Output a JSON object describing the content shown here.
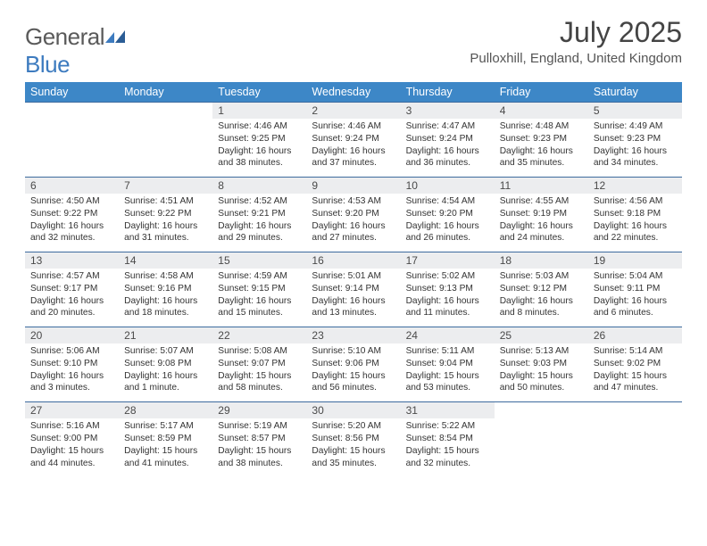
{
  "logo": {
    "text_general": "General",
    "text_blue": "Blue"
  },
  "title": "July 2025",
  "location": "Pulloxhill, England, United Kingdom",
  "colors": {
    "header_bg": "#3d87c7",
    "header_text": "#ffffff",
    "row_border": "#3d6b9e",
    "daynum_bg": "#ecedef",
    "logo_gray": "#5a5a5a",
    "logo_blue": "#3d7bbf"
  },
  "day_headers": [
    "Sunday",
    "Monday",
    "Tuesday",
    "Wednesday",
    "Thursday",
    "Friday",
    "Saturday"
  ],
  "weeks": [
    [
      null,
      null,
      {
        "n": "1",
        "sunrise": "4:46 AM",
        "sunset": "9:25 PM",
        "daylight": "16 hours and 38 minutes."
      },
      {
        "n": "2",
        "sunrise": "4:46 AM",
        "sunset": "9:24 PM",
        "daylight": "16 hours and 37 minutes."
      },
      {
        "n": "3",
        "sunrise": "4:47 AM",
        "sunset": "9:24 PM",
        "daylight": "16 hours and 36 minutes."
      },
      {
        "n": "4",
        "sunrise": "4:48 AM",
        "sunset": "9:23 PM",
        "daylight": "16 hours and 35 minutes."
      },
      {
        "n": "5",
        "sunrise": "4:49 AM",
        "sunset": "9:23 PM",
        "daylight": "16 hours and 34 minutes."
      }
    ],
    [
      {
        "n": "6",
        "sunrise": "4:50 AM",
        "sunset": "9:22 PM",
        "daylight": "16 hours and 32 minutes."
      },
      {
        "n": "7",
        "sunrise": "4:51 AM",
        "sunset": "9:22 PM",
        "daylight": "16 hours and 31 minutes."
      },
      {
        "n": "8",
        "sunrise": "4:52 AM",
        "sunset": "9:21 PM",
        "daylight": "16 hours and 29 minutes."
      },
      {
        "n": "9",
        "sunrise": "4:53 AM",
        "sunset": "9:20 PM",
        "daylight": "16 hours and 27 minutes."
      },
      {
        "n": "10",
        "sunrise": "4:54 AM",
        "sunset": "9:20 PM",
        "daylight": "16 hours and 26 minutes."
      },
      {
        "n": "11",
        "sunrise": "4:55 AM",
        "sunset": "9:19 PM",
        "daylight": "16 hours and 24 minutes."
      },
      {
        "n": "12",
        "sunrise": "4:56 AM",
        "sunset": "9:18 PM",
        "daylight": "16 hours and 22 minutes."
      }
    ],
    [
      {
        "n": "13",
        "sunrise": "4:57 AM",
        "sunset": "9:17 PM",
        "daylight": "16 hours and 20 minutes."
      },
      {
        "n": "14",
        "sunrise": "4:58 AM",
        "sunset": "9:16 PM",
        "daylight": "16 hours and 18 minutes."
      },
      {
        "n": "15",
        "sunrise": "4:59 AM",
        "sunset": "9:15 PM",
        "daylight": "16 hours and 15 minutes."
      },
      {
        "n": "16",
        "sunrise": "5:01 AM",
        "sunset": "9:14 PM",
        "daylight": "16 hours and 13 minutes."
      },
      {
        "n": "17",
        "sunrise": "5:02 AM",
        "sunset": "9:13 PM",
        "daylight": "16 hours and 11 minutes."
      },
      {
        "n": "18",
        "sunrise": "5:03 AM",
        "sunset": "9:12 PM",
        "daylight": "16 hours and 8 minutes."
      },
      {
        "n": "19",
        "sunrise": "5:04 AM",
        "sunset": "9:11 PM",
        "daylight": "16 hours and 6 minutes."
      }
    ],
    [
      {
        "n": "20",
        "sunrise": "5:06 AM",
        "sunset": "9:10 PM",
        "daylight": "16 hours and 3 minutes."
      },
      {
        "n": "21",
        "sunrise": "5:07 AM",
        "sunset": "9:08 PM",
        "daylight": "16 hours and 1 minute."
      },
      {
        "n": "22",
        "sunrise": "5:08 AM",
        "sunset": "9:07 PM",
        "daylight": "15 hours and 58 minutes."
      },
      {
        "n": "23",
        "sunrise": "5:10 AM",
        "sunset": "9:06 PM",
        "daylight": "15 hours and 56 minutes."
      },
      {
        "n": "24",
        "sunrise": "5:11 AM",
        "sunset": "9:04 PM",
        "daylight": "15 hours and 53 minutes."
      },
      {
        "n": "25",
        "sunrise": "5:13 AM",
        "sunset": "9:03 PM",
        "daylight": "15 hours and 50 minutes."
      },
      {
        "n": "26",
        "sunrise": "5:14 AM",
        "sunset": "9:02 PM",
        "daylight": "15 hours and 47 minutes."
      }
    ],
    [
      {
        "n": "27",
        "sunrise": "5:16 AM",
        "sunset": "9:00 PM",
        "daylight": "15 hours and 44 minutes."
      },
      {
        "n": "28",
        "sunrise": "5:17 AM",
        "sunset": "8:59 PM",
        "daylight": "15 hours and 41 minutes."
      },
      {
        "n": "29",
        "sunrise": "5:19 AM",
        "sunset": "8:57 PM",
        "daylight": "15 hours and 38 minutes."
      },
      {
        "n": "30",
        "sunrise": "5:20 AM",
        "sunset": "8:56 PM",
        "daylight": "15 hours and 35 minutes."
      },
      {
        "n": "31",
        "sunrise": "5:22 AM",
        "sunset": "8:54 PM",
        "daylight": "15 hours and 32 minutes."
      },
      null,
      null
    ]
  ],
  "labels": {
    "sunrise": "Sunrise: ",
    "sunset": "Sunset: ",
    "daylight": "Daylight: "
  }
}
